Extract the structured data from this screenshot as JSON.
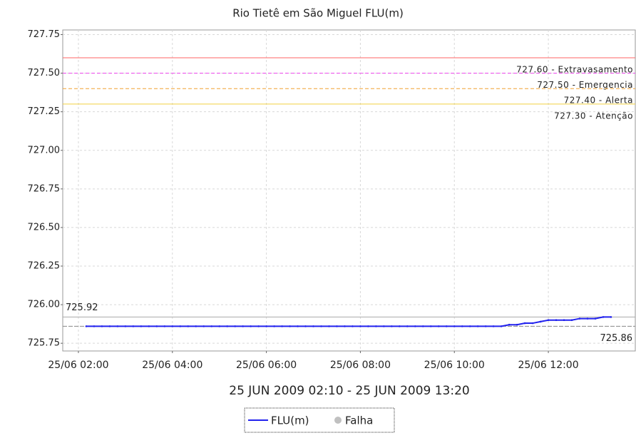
{
  "chart_data": {
    "type": "line",
    "title": "Rio Tietê em São Miguel FLU(m)",
    "subtitle": "25 JUN 2009 02:10 - 25 JUN 2009 13:20",
    "x": [
      "25/06 02:10",
      "25/06 02:20",
      "25/06 02:30",
      "25/06 02:40",
      "25/06 02:50",
      "25/06 03:00",
      "25/06 03:10",
      "25/06 03:20",
      "25/06 03:30",
      "25/06 03:40",
      "25/06 03:50",
      "25/06 04:00",
      "25/06 04:10",
      "25/06 04:20",
      "25/06 04:30",
      "25/06 04:40",
      "25/06 04:50",
      "25/06 05:00",
      "25/06 05:10",
      "25/06 05:20",
      "25/06 05:30",
      "25/06 05:40",
      "25/06 05:50",
      "25/06 06:00",
      "25/06 06:10",
      "25/06 06:20",
      "25/06 06:30",
      "25/06 06:40",
      "25/06 06:50",
      "25/06 07:00",
      "25/06 07:10",
      "25/06 07:20",
      "25/06 07:30",
      "25/06 07:40",
      "25/06 07:50",
      "25/06 08:00",
      "25/06 08:10",
      "25/06 08:20",
      "25/06 08:30",
      "25/06 08:40",
      "25/06 08:50",
      "25/06 09:00",
      "25/06 09:10",
      "25/06 09:20",
      "25/06 09:30",
      "25/06 09:40",
      "25/06 09:50",
      "25/06 10:00",
      "25/06 10:10",
      "25/06 10:20",
      "25/06 10:30",
      "25/06 10:40",
      "25/06 10:50",
      "25/06 11:00",
      "25/06 11:10",
      "25/06 11:20",
      "25/06 11:30",
      "25/06 11:40",
      "25/06 11:50",
      "25/06 12:00",
      "25/06 12:10",
      "25/06 12:20",
      "25/06 12:30",
      "25/06 12:40",
      "25/06 12:50",
      "25/06 13:00",
      "25/06 13:10",
      "25/06 13:20"
    ],
    "series": [
      {
        "name": "FLU(m)",
        "color": "#2222ee",
        "values": [
          725.86,
          725.86,
          725.86,
          725.86,
          725.86,
          725.86,
          725.86,
          725.86,
          725.86,
          725.86,
          725.86,
          725.86,
          725.86,
          725.86,
          725.86,
          725.86,
          725.86,
          725.86,
          725.86,
          725.86,
          725.86,
          725.86,
          725.86,
          725.86,
          725.86,
          725.86,
          725.86,
          725.86,
          725.86,
          725.86,
          725.86,
          725.86,
          725.86,
          725.86,
          725.86,
          725.86,
          725.86,
          725.86,
          725.86,
          725.86,
          725.86,
          725.86,
          725.86,
          725.86,
          725.86,
          725.86,
          725.86,
          725.86,
          725.86,
          725.86,
          725.86,
          725.86,
          725.86,
          725.86,
          725.87,
          725.87,
          725.88,
          725.88,
          725.89,
          725.9,
          725.9,
          725.9,
          725.9,
          725.91,
          725.91,
          725.91,
          725.92,
          725.92
        ]
      }
    ],
    "failure_legend": {
      "name": "Falha",
      "color": "#c0c0c0"
    },
    "xlim": [
      "25/06 01:40",
      "25/06 13:51"
    ],
    "xticks": [
      "25/06 02:00",
      "25/06 04:00",
      "25/06 06:00",
      "25/06 08:00",
      "25/06 10:00",
      "25/06 12:00"
    ],
    "ylim": [
      725.7,
      727.78
    ],
    "yticks": [
      725.75,
      {
        "value": 726,
        "label": "726.00"
      },
      726.25,
      {
        "value": 726.5,
        "label": "726.50"
      },
      726.75,
      {
        "value": 727,
        "label": "727.00"
      },
      727.25,
      {
        "value": 727.5,
        "label": "727.50"
      },
      727.75
    ],
    "thresholds": [
      {
        "value": 727.6,
        "label": "727.60 - Extravasamento",
        "color": "#ff6666",
        "dashed": false
      },
      {
        "value": 727.5,
        "label": "727.50 - Emergencia",
        "color": "#ee44ee",
        "dashed": true
      },
      {
        "value": 727.4,
        "label": "727.40 - Alerta",
        "color": "#f0a030",
        "dashed": true
      },
      {
        "value": 727.3,
        "label": "727.30 - Atenção",
        "color": "#f0d040",
        "dashed": false
      }
    ],
    "max_marker": {
      "value": 725.92,
      "label": "725.92"
    },
    "min_marker": {
      "value": 725.86,
      "label": "725.86"
    },
    "grid": true
  }
}
